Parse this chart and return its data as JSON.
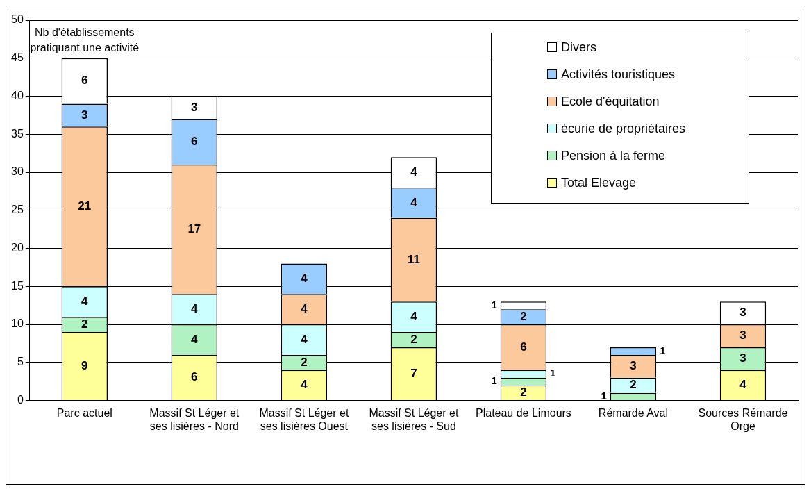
{
  "chart_data": {
    "type": "bar",
    "stacked": true,
    "categories": [
      "Parc actuel",
      "Massif St Léger et ses lisières - Nord",
      "Massif St Léger et ses lisières Ouest",
      "Massif St Léger et ses lisières - Sud",
      "Plateau de Limours",
      "Rémarde Aval",
      "Sources Rémarde Orge"
    ],
    "series": [
      {
        "name": "Total Elevage",
        "color": "#ffff99",
        "values": [
          9,
          6,
          4,
          7,
          2,
          null,
          4
        ]
      },
      {
        "name": "Pension à la ferme",
        "color": "#b0f2c2",
        "values": [
          2,
          4,
          2,
          2,
          1,
          1,
          3
        ]
      },
      {
        "name": "écurie de propriétaires",
        "color": "#ccffff",
        "values": [
          4,
          4,
          4,
          4,
          1,
          2,
          null
        ]
      },
      {
        "name": "Ecole d'équitation",
        "color": "#fcc99c",
        "values": [
          21,
          17,
          4,
          11,
          6,
          3,
          3
        ]
      },
      {
        "name": "Activités touristiques",
        "color": "#99ccff",
        "values": [
          3,
          6,
          4,
          4,
          2,
          1,
          null
        ]
      },
      {
        "name": "Divers",
        "color": "#ffffff",
        "values": [
          6,
          3,
          null,
          4,
          1,
          null,
          3
        ]
      }
    ],
    "ylim": [
      0,
      50
    ],
    "yticks": [
      0,
      5,
      10,
      15,
      20,
      25,
      30,
      35,
      40,
      45,
      50
    ],
    "grid": "y",
    "legend": "top right",
    "data_labels": true,
    "annotations": [
      {
        "text": "Nb d'établissements pratiquant une activité",
        "x": "Parc actuel",
        "y": 45
      }
    ]
  }
}
